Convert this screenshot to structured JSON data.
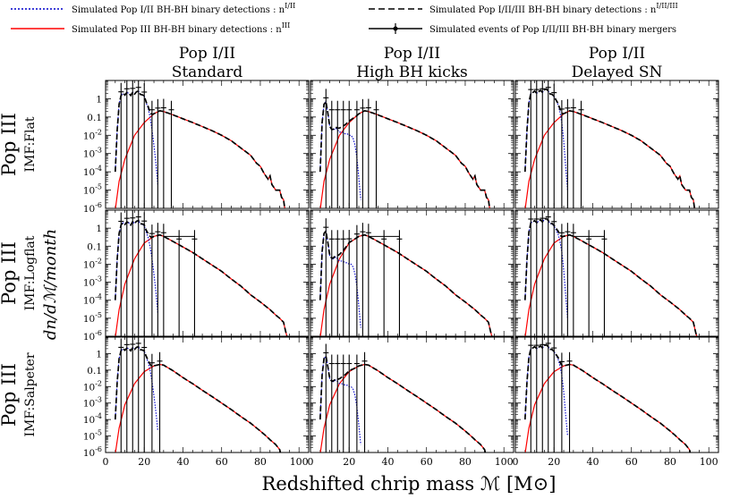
{
  "chart_data": {
    "type": "line",
    "figure_xlabel": "Redshifted chrip mass  ℳ [M⊙]",
    "figure_ylabel": "dn/dℳ/month",
    "xlim": [
      0,
      105
    ],
    "ylim": [
      1e-06,
      10
    ],
    "x_ticks": [
      0,
      20,
      40,
      60,
      80,
      100
    ],
    "y_ticks": [
      1e-06,
      1e-05,
      0.0001,
      0.001,
      0.01,
      0.1,
      1
    ],
    "y_tick_labels": [
      "10^-6",
      "10^-5",
      "10^-4",
      "10^-3",
      "10^-2",
      "0.1",
      "1"
    ],
    "legend": [
      {
        "name": "Simulated Pop I/II BH-BH binary detections : n",
        "sup": "I/II",
        "style": "dotted",
        "color": "#0000cc"
      },
      {
        "name": "Simulated Pop III BH-BH binary detections : n",
        "sup": "III",
        "style": "solid",
        "color": "#ff0000"
      },
      {
        "name": "Simulated Pop I/II/III BH-BH binary detections : n",
        "sup": "I/II/III",
        "style": "dashed",
        "color": "#000000"
      },
      {
        "name": "Simulated events of Pop I/II/III BH-BH binary mergers",
        "sup": "",
        "style": "errorbar",
        "color": "#000000"
      }
    ],
    "columns": [
      {
        "title1": "Pop I/II",
        "title2": "Standard",
        "model": "standard"
      },
      {
        "title1": "Pop I/II",
        "title2": "High BH kicks",
        "model": "kicks"
      },
      {
        "title1": "Pop I/II",
        "title2": "Delayed SN",
        "model": "delayed"
      }
    ],
    "rows": [
      {
        "title1": "Pop III",
        "title2": "IMF:Flat",
        "imf": "flat"
      },
      {
        "title1": "Pop III",
        "title2": "IMF:Logflat",
        "imf": "logflat"
      },
      {
        "title1": "Pop III",
        "title2": "IMF:Salpeter",
        "imf": "salpeter"
      }
    ],
    "pop12_series": {
      "standard": {
        "x": [
          5,
          6,
          7,
          8,
          9,
          10,
          11,
          12,
          13,
          14,
          15,
          16,
          17,
          18,
          19,
          20,
          21,
          22,
          23,
          24,
          25,
          26,
          27
        ],
        "y": [
          0.0001,
          0.02,
          0.5,
          1.5,
          2.0,
          1.6,
          2.2,
          2.0,
          1.5,
          2.3,
          1.8,
          2.4,
          2.6,
          1.7,
          1.6,
          1.4,
          0.6,
          0.3,
          0.1,
          0.02,
          0.003,
          0.0003,
          2e-05
        ]
      },
      "kicks": {
        "x": [
          5,
          6,
          7,
          8,
          9,
          10,
          11,
          12,
          13,
          14,
          15,
          16,
          17,
          18,
          19,
          20,
          21,
          22,
          23,
          24,
          25,
          26
        ],
        "y": [
          0.0001,
          0.05,
          0.5,
          0.7,
          0.15,
          0.03,
          0.02,
          0.02,
          0.025,
          0.02,
          0.015,
          0.015,
          0.014,
          0.012,
          0.012,
          0.01,
          0.01,
          0.007,
          0.003,
          0.0006,
          5e-05,
          3e-06
        ]
      },
      "delayed": {
        "x": [
          5,
          6,
          7,
          8,
          9,
          10,
          11,
          12,
          13,
          14,
          15,
          16,
          17,
          18,
          19,
          20,
          21,
          22,
          23,
          24,
          25,
          26,
          27
        ],
        "y": [
          0.0001,
          0.02,
          0.6,
          2.0,
          2.2,
          2.6,
          2.0,
          2.4,
          2.9,
          2.2,
          3.1,
          3.4,
          2.6,
          1.8,
          1.7,
          1.3,
          0.8,
          0.5,
          0.2,
          0.05,
          0.005,
          0.0002,
          1e-05
        ]
      }
    },
    "pop3_series": {
      "flat": {
        "x": [
          5,
          7,
          10,
          15,
          20,
          25,
          28,
          30,
          35,
          40,
          45,
          50,
          55,
          60,
          65,
          70,
          75,
          78,
          80,
          82,
          84,
          85,
          86,
          88,
          90,
          91,
          92,
          93,
          95,
          96
        ],
        "y": [
          8e-07,
          3e-05,
          0.0005,
          0.01,
          0.05,
          0.15,
          0.22,
          0.2,
          0.13,
          0.08,
          0.05,
          0.03,
          0.018,
          0.01,
          0.005,
          0.002,
          0.0008,
          0.0003,
          0.0002,
          8e-05,
          4e-05,
          6e-05,
          2e-05,
          1e-05,
          1e-05,
          4e-06,
          3e-06,
          5e-07,
          2e-07,
          1e-07
        ]
      },
      "logflat": {
        "x": [
          5,
          7,
          10,
          15,
          20,
          25,
          28,
          30,
          35,
          40,
          45,
          50,
          55,
          60,
          65,
          70,
          75,
          80,
          85,
          88,
          90,
          92,
          93,
          94,
          95,
          96
        ],
        "y": [
          8e-07,
          3e-05,
          0.0008,
          0.02,
          0.15,
          0.35,
          0.42,
          0.35,
          0.18,
          0.09,
          0.045,
          0.02,
          0.009,
          0.004,
          0.0015,
          0.0006,
          0.0002,
          8e-05,
          3e-05,
          1.5e-05,
          1e-05,
          6e-06,
          2e-06,
          8e-07,
          3e-07,
          1e-07
        ]
      },
      "salpeter": {
        "x": [
          5,
          7,
          10,
          15,
          20,
          25,
          28,
          30,
          35,
          40,
          45,
          50,
          55,
          60,
          65,
          70,
          75,
          80,
          83,
          85,
          88,
          90,
          91,
          92
        ],
        "y": [
          8e-07,
          3e-05,
          0.0008,
          0.015,
          0.08,
          0.18,
          0.22,
          0.2,
          0.09,
          0.035,
          0.015,
          0.006,
          0.0025,
          0.001,
          0.0004,
          0.00015,
          6e-05,
          2e-05,
          1e-05,
          6e-06,
          3e-06,
          1.5e-06,
          5e-07,
          1e-07
        ]
      }
    },
    "events": {
      "flat": {
        "standard": [
          8,
          11,
          14,
          17,
          20,
          24,
          27,
          30,
          34
        ],
        "kicks": [
          8,
          11,
          14,
          17,
          20,
          24,
          27,
          30,
          34
        ],
        "delayed": [
          8,
          11,
          14,
          17,
          20,
          24,
          27,
          30,
          34
        ]
      },
      "logflat": {
        "standard": [
          8,
          11,
          14,
          17,
          20,
          24,
          27,
          30,
          38,
          46
        ],
        "kicks": [
          8,
          11,
          14,
          17,
          20,
          24,
          27,
          30,
          38,
          46
        ],
        "delayed": [
          8,
          11,
          14,
          17,
          20,
          24,
          27,
          30,
          38,
          46
        ]
      },
      "salpeter": {
        "standard": [
          8,
          11,
          14,
          17,
          20,
          24,
          28
        ],
        "kicks": [
          8,
          11,
          14,
          17,
          20,
          24,
          28
        ],
        "delayed": [
          8,
          11,
          14,
          17,
          20,
          24,
          28
        ]
      }
    }
  }
}
